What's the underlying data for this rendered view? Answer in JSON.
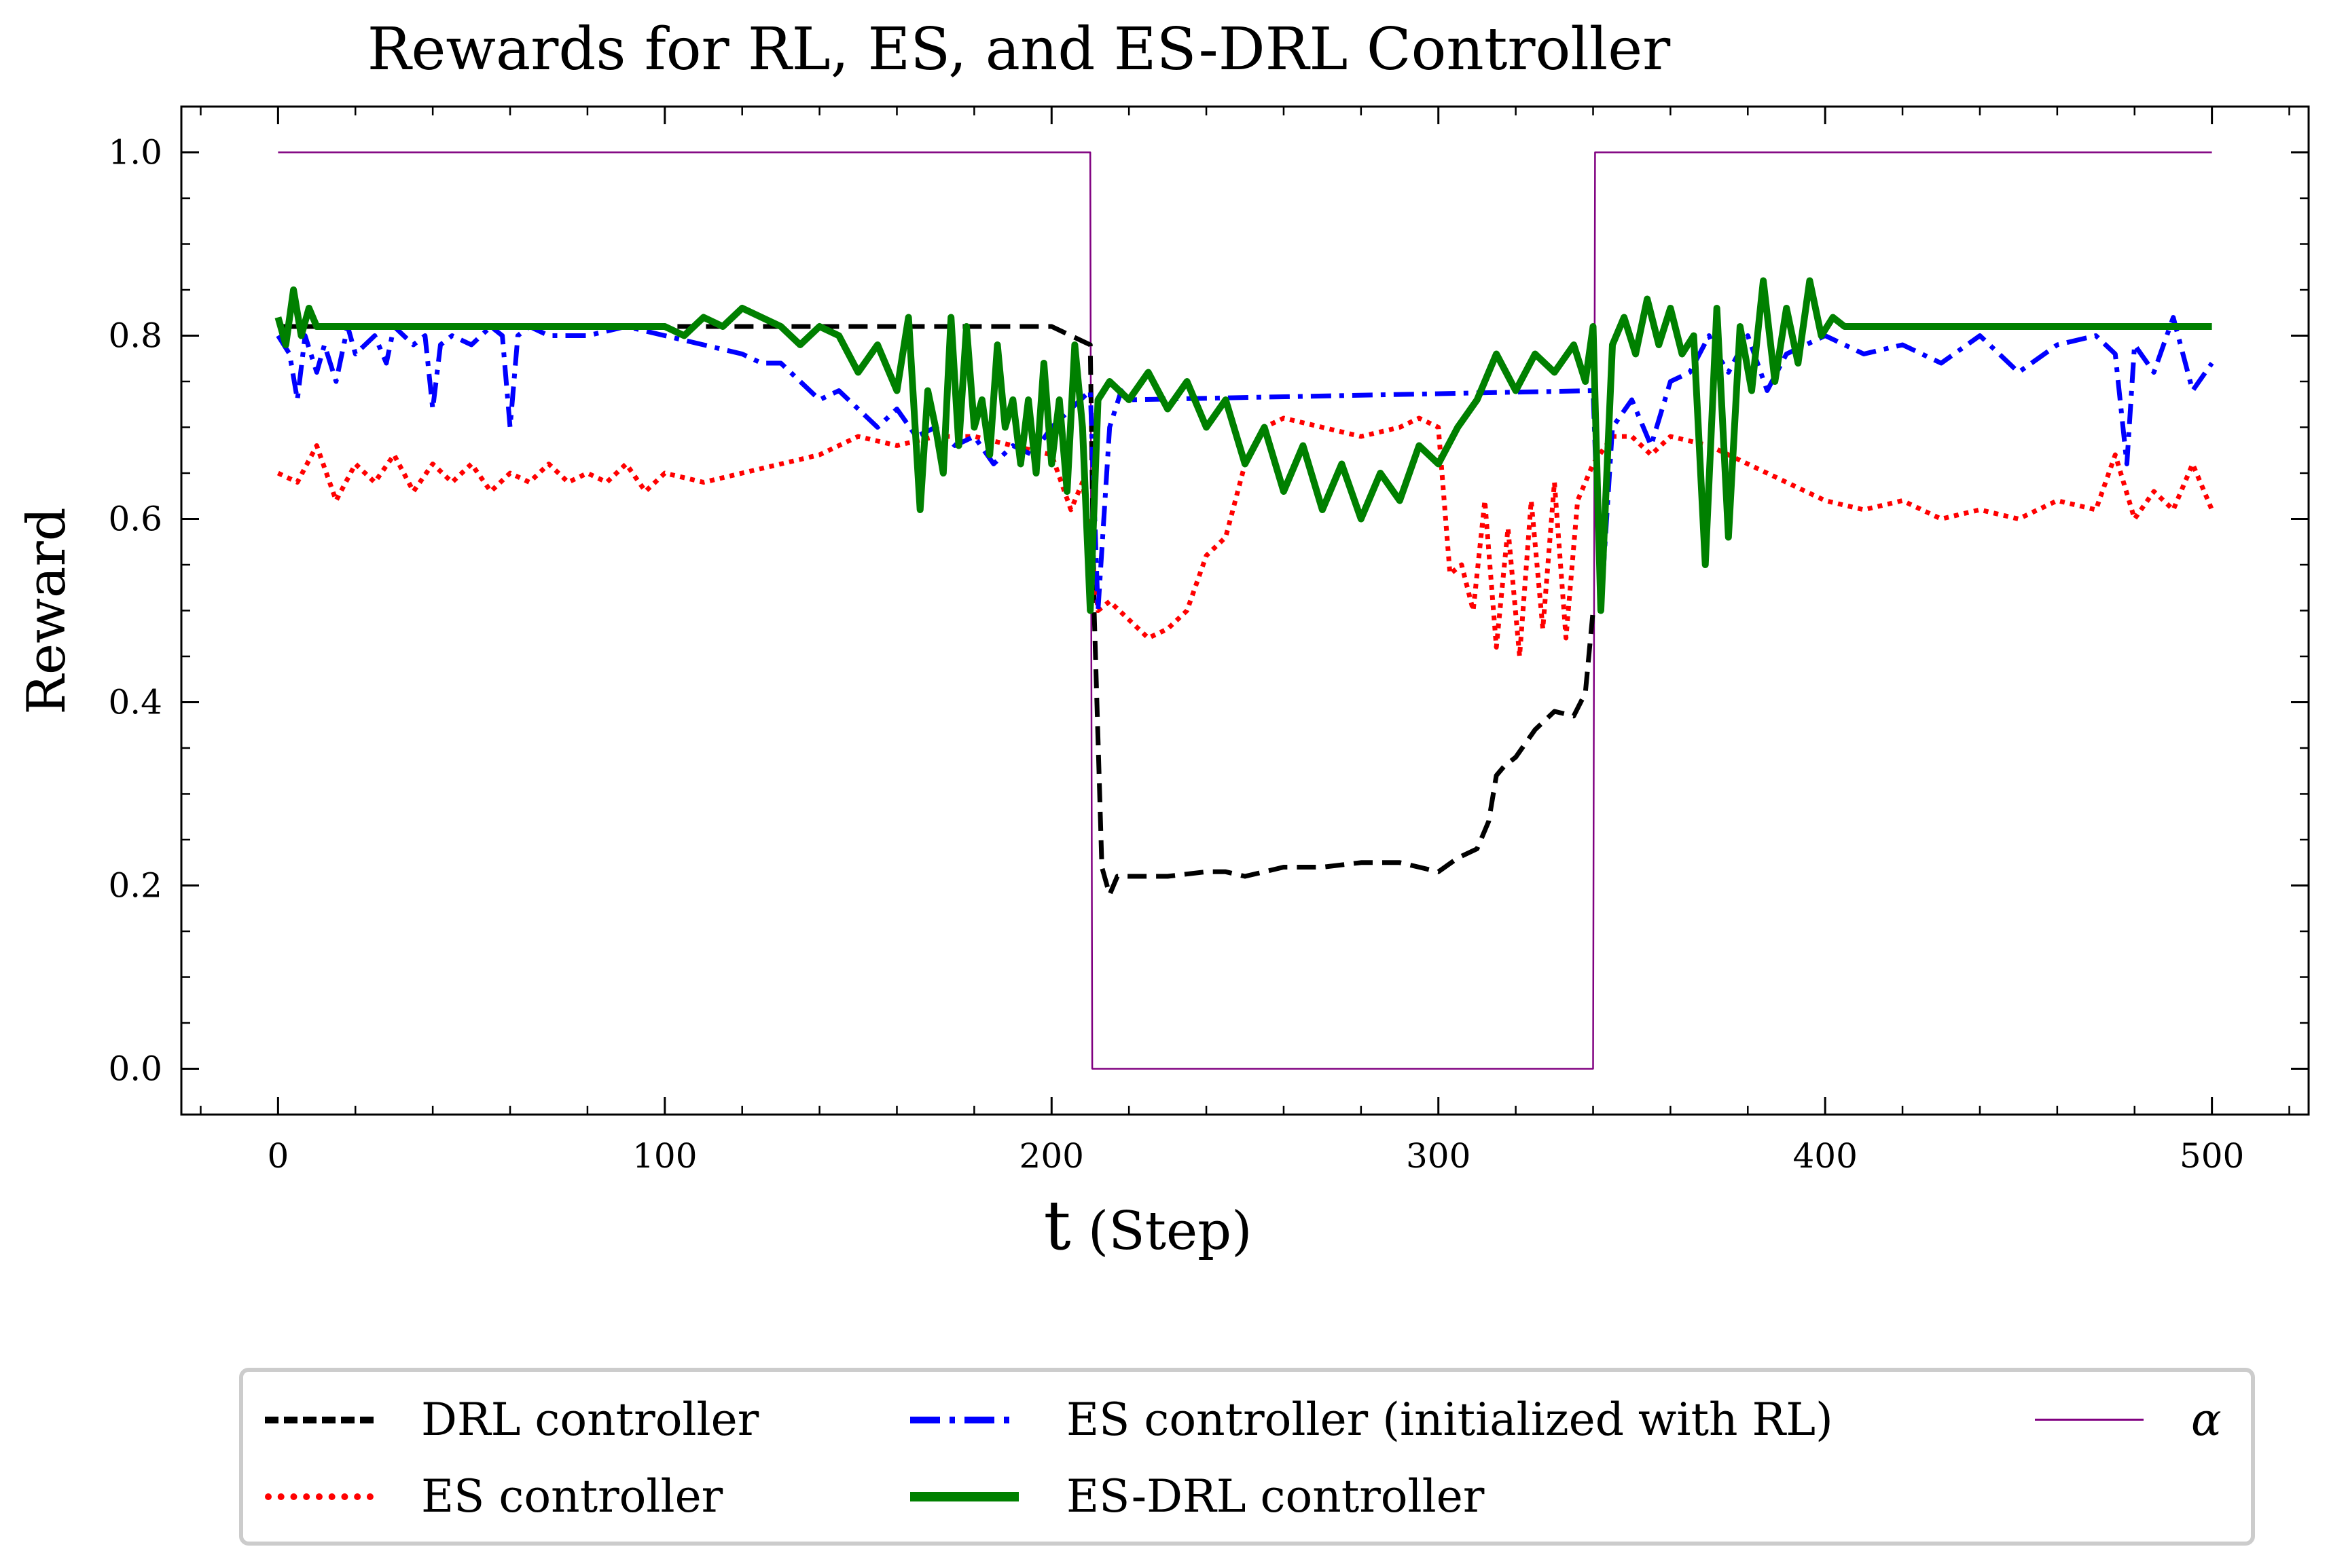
{
  "chart_data": {
    "type": "line",
    "title": "Rewards for RL, ES, and ES-DRL Controller",
    "xlabel_main": "t",
    "xlabel_unit": "(Step)",
    "ylabel": "Reward",
    "xlim": [
      -25,
      525
    ],
    "ylim": [
      -0.05,
      1.05
    ],
    "x_ticks": [
      0,
      100,
      200,
      300,
      400,
      500
    ],
    "x_tick_labels": [
      "0",
      "100",
      "200",
      "300",
      "400",
      "500"
    ],
    "y_ticks": [
      0.0,
      0.2,
      0.4,
      0.6,
      0.8,
      1.0
    ],
    "y_tick_labels": [
      "0.0",
      "0.2",
      "0.4",
      "0.6",
      "0.8",
      "1.0"
    ],
    "series": [
      {
        "name": "DRL controller",
        "style": "dashed",
        "color": "#000000",
        "x": [
          0,
          100,
          200,
          210,
          211,
          213,
          215,
          217,
          220,
          230,
          240,
          245,
          250,
          255,
          260,
          270,
          280,
          290,
          295,
          300,
          305,
          310,
          313,
          315,
          317,
          320,
          325,
          330,
          335,
          338,
          340,
          342
        ],
        "values": [
          0.81,
          0.81,
          0.81,
          0.79,
          0.5,
          0.22,
          0.19,
          0.21,
          0.21,
          0.21,
          0.215,
          0.215,
          0.21,
          0.215,
          0.22,
          0.22,
          0.225,
          0.225,
          0.22,
          0.215,
          0.23,
          0.24,
          0.27,
          0.32,
          0.33,
          0.34,
          0.37,
          0.39,
          0.385,
          0.41,
          0.5,
          0.5
        ]
      },
      {
        "name": "ES controller",
        "style": "dotted",
        "color": "#ff0000",
        "x": [
          0,
          5,
          10,
          15,
          20,
          25,
          30,
          35,
          40,
          45,
          50,
          55,
          60,
          65,
          70,
          75,
          80,
          85,
          90,
          95,
          100,
          110,
          120,
          130,
          140,
          150,
          160,
          170,
          180,
          190,
          200,
          205,
          208,
          210,
          212,
          215,
          220,
          225,
          230,
          235,
          240,
          245,
          250,
          255,
          260,
          270,
          280,
          290,
          295,
          300,
          303,
          306,
          309,
          312,
          315,
          318,
          321,
          324,
          327,
          330,
          333,
          336,
          340,
          345,
          350,
          355,
          360,
          370,
          380,
          390,
          400,
          410,
          420,
          430,
          440,
          450,
          460,
          470,
          475,
          480,
          485,
          490,
          495,
          500
        ],
        "values": [
          0.65,
          0.64,
          0.68,
          0.62,
          0.66,
          0.64,
          0.67,
          0.63,
          0.66,
          0.64,
          0.66,
          0.63,
          0.65,
          0.64,
          0.66,
          0.64,
          0.65,
          0.64,
          0.66,
          0.63,
          0.65,
          0.64,
          0.65,
          0.66,
          0.67,
          0.69,
          0.68,
          0.69,
          0.69,
          0.68,
          0.67,
          0.61,
          0.64,
          0.58,
          0.5,
          0.51,
          0.49,
          0.47,
          0.48,
          0.5,
          0.56,
          0.58,
          0.66,
          0.7,
          0.71,
          0.7,
          0.69,
          0.7,
          0.71,
          0.7,
          0.54,
          0.55,
          0.5,
          0.62,
          0.46,
          0.59,
          0.45,
          0.62,
          0.48,
          0.64,
          0.47,
          0.62,
          0.66,
          0.69,
          0.69,
          0.67,
          0.69,
          0.68,
          0.66,
          0.64,
          0.62,
          0.61,
          0.62,
          0.6,
          0.61,
          0.6,
          0.62,
          0.61,
          0.67,
          0.6,
          0.63,
          0.61,
          0.66,
          0.61
        ]
      },
      {
        "name": "ES controller (initialized with RL)",
        "style": "dashdot",
        "color": "#0000ff",
        "x": [
          0,
          3,
          5,
          7,
          10,
          12,
          15,
          18,
          20,
          25,
          28,
          30,
          35,
          38,
          40,
          42,
          45,
          50,
          55,
          58,
          60,
          62,
          65,
          70,
          80,
          90,
          100,
          110,
          120,
          125,
          130,
          140,
          145,
          150,
          155,
          160,
          165,
          170,
          175,
          180,
          185,
          190,
          195,
          200,
          205,
          210,
          212,
          215,
          218,
          220,
          340,
          342,
          345,
          350,
          355,
          360,
          365,
          370,
          372,
          375,
          380,
          385,
          390,
          395,
          400,
          410,
          420,
          430,
          440,
          450,
          460,
          470,
          475,
          478,
          480,
          485,
          490,
          495,
          500
        ],
        "values": [
          0.8,
          0.78,
          0.73,
          0.8,
          0.76,
          0.79,
          0.75,
          0.81,
          0.78,
          0.8,
          0.77,
          0.81,
          0.79,
          0.8,
          0.72,
          0.79,
          0.8,
          0.79,
          0.81,
          0.8,
          0.7,
          0.8,
          0.81,
          0.8,
          0.8,
          0.81,
          0.8,
          0.79,
          0.78,
          0.77,
          0.77,
          0.73,
          0.74,
          0.72,
          0.7,
          0.72,
          0.69,
          0.7,
          0.68,
          0.69,
          0.66,
          0.68,
          0.67,
          0.7,
          0.72,
          0.74,
          0.5,
          0.7,
          0.74,
          0.73,
          0.74,
          0.5,
          0.7,
          0.73,
          0.68,
          0.75,
          0.76,
          0.8,
          0.78,
          0.76,
          0.8,
          0.74,
          0.78,
          0.79,
          0.8,
          0.78,
          0.79,
          0.77,
          0.8,
          0.76,
          0.79,
          0.8,
          0.78,
          0.66,
          0.79,
          0.76,
          0.82,
          0.74,
          0.77
        ]
      },
      {
        "name": "ES-DRL controller",
        "style": "solid",
        "color": "#008000",
        "x": [
          0,
          2,
          4,
          6,
          8,
          10,
          15,
          20,
          30,
          40,
          50,
          60,
          70,
          80,
          90,
          100,
          105,
          110,
          115,
          120,
          125,
          130,
          135,
          140,
          145,
          150,
          155,
          160,
          163,
          166,
          168,
          170,
          172,
          174,
          176,
          178,
          180,
          182,
          184,
          186,
          188,
          190,
          192,
          194,
          196,
          198,
          200,
          202,
          204,
          206,
          208,
          210,
          212,
          215,
          220,
          225,
          230,
          235,
          240,
          245,
          250,
          255,
          260,
          265,
          270,
          275,
          280,
          285,
          290,
          295,
          300,
          305,
          310,
          315,
          320,
          325,
          330,
          335,
          338,
          340,
          342,
          345,
          348,
          351,
          354,
          357,
          360,
          363,
          366,
          369,
          372,
          375,
          378,
          381,
          384,
          387,
          390,
          393,
          396,
          399,
          402,
          405,
          410,
          420,
          430,
          440,
          450,
          460,
          470,
          480,
          490,
          500
        ],
        "values": [
          0.82,
          0.79,
          0.85,
          0.8,
          0.83,
          0.81,
          0.81,
          0.81,
          0.81,
          0.81,
          0.81,
          0.81,
          0.81,
          0.81,
          0.81,
          0.81,
          0.8,
          0.82,
          0.81,
          0.83,
          0.82,
          0.81,
          0.79,
          0.81,
          0.8,
          0.76,
          0.79,
          0.74,
          0.82,
          0.61,
          0.74,
          0.7,
          0.65,
          0.82,
          0.68,
          0.81,
          0.7,
          0.73,
          0.67,
          0.79,
          0.7,
          0.73,
          0.66,
          0.73,
          0.65,
          0.77,
          0.66,
          0.73,
          0.63,
          0.79,
          0.7,
          0.5,
          0.73,
          0.75,
          0.73,
          0.76,
          0.72,
          0.75,
          0.7,
          0.73,
          0.66,
          0.7,
          0.63,
          0.68,
          0.61,
          0.66,
          0.6,
          0.65,
          0.62,
          0.68,
          0.66,
          0.7,
          0.73,
          0.78,
          0.74,
          0.78,
          0.76,
          0.79,
          0.75,
          0.81,
          0.5,
          0.79,
          0.82,
          0.78,
          0.84,
          0.79,
          0.83,
          0.78,
          0.8,
          0.55,
          0.83,
          0.58,
          0.81,
          0.74,
          0.86,
          0.75,
          0.83,
          0.77,
          0.86,
          0.8,
          0.82,
          0.81,
          0.81,
          0.81,
          0.81,
          0.81,
          0.81,
          0.81,
          0.81,
          0.81,
          0.81,
          0.81
        ]
      },
      {
        "name": "α",
        "style": "solid-thin",
        "color": "#800080",
        "x": [
          0,
          210,
          210.5,
          340,
          340.5,
          500
        ],
        "values": [
          1.0,
          1.0,
          0.0,
          0.0,
          1.0,
          1.0
        ]
      }
    ],
    "legend_position": "bottom-outside"
  }
}
